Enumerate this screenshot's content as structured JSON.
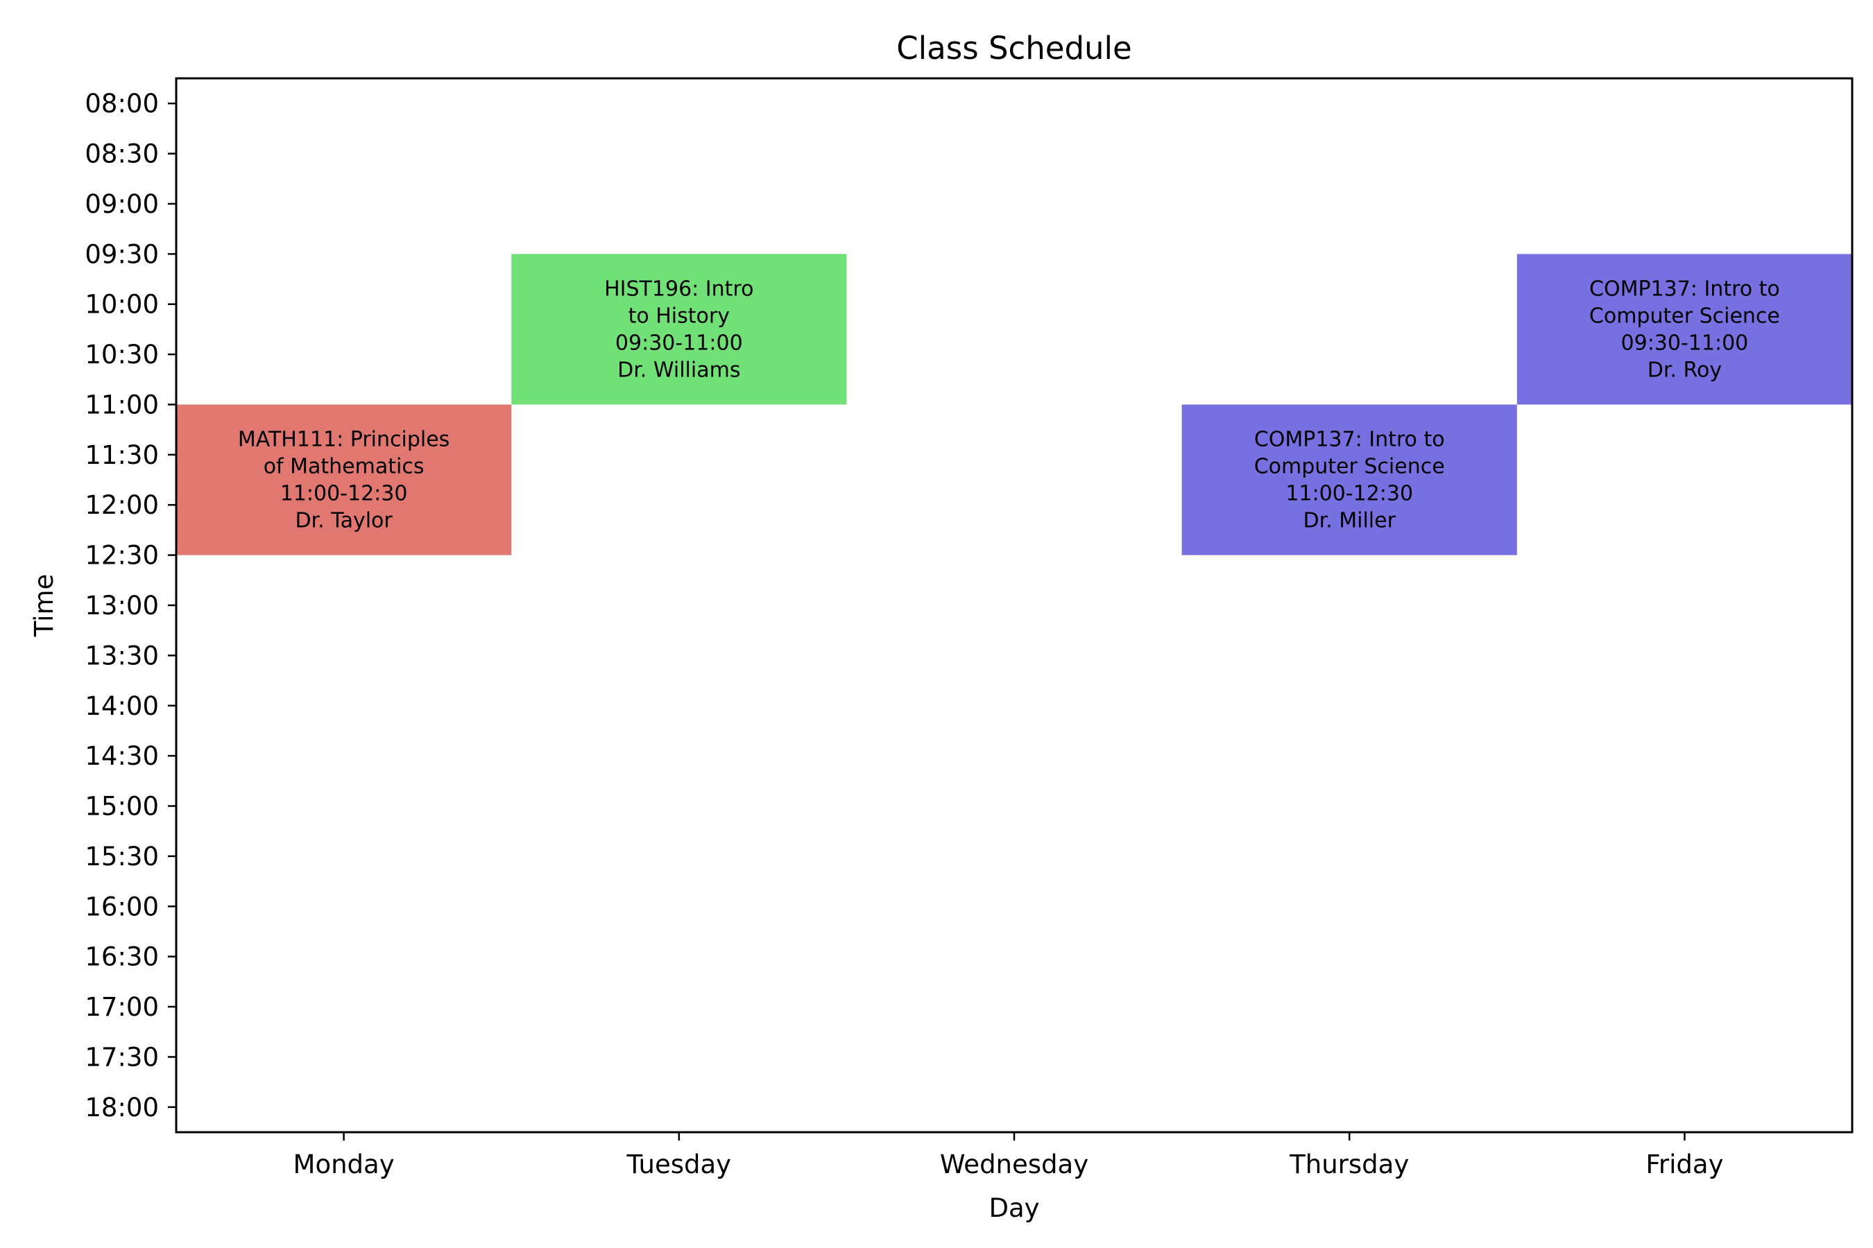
{
  "chart_data": {
    "type": "schedule",
    "title": "Class Schedule",
    "xlabel": "Day",
    "ylabel": "Time",
    "days": [
      "Monday",
      "Tuesday",
      "Wednesday",
      "Thursday",
      "Friday"
    ],
    "time_ticks": [
      "08:00",
      "08:30",
      "09:00",
      "09:30",
      "10:00",
      "10:30",
      "11:00",
      "11:30",
      "12:00",
      "12:30",
      "13:00",
      "13:30",
      "14:00",
      "14:30",
      "15:00",
      "15:30",
      "16:00",
      "16:30",
      "17:00",
      "17:30",
      "18:00"
    ],
    "y_range": [
      "07:45",
      "18:15"
    ],
    "classes": [
      {
        "day": "Monday",
        "start": "11:00",
        "end": "12:30",
        "label_lines": [
          "MATH111: Principles",
          "of Mathematics",
          "11:00-12:30",
          "Dr. Taylor"
        ],
        "color": "#e07770"
      },
      {
        "day": "Tuesday",
        "start": "09:30",
        "end": "11:00",
        "label_lines": [
          "HIST196: Intro",
          "to History",
          "09:30-11:00",
          "Dr. Williams"
        ],
        "color": "#70e077"
      },
      {
        "day": "Thursday",
        "start": "11:00",
        "end": "12:30",
        "label_lines": [
          "COMP137: Intro to",
          "Computer Science",
          "11:00-12:30",
          "Dr. Miller"
        ],
        "color": "#7770e0"
      },
      {
        "day": "Friday",
        "start": "09:30",
        "end": "11:00",
        "label_lines": [
          "COMP137: Intro to",
          "Computer Science",
          "09:30-11:00",
          "Dr. Roy"
        ],
        "color": "#7770e0"
      }
    ],
    "grid": false,
    "legend": "none"
  }
}
